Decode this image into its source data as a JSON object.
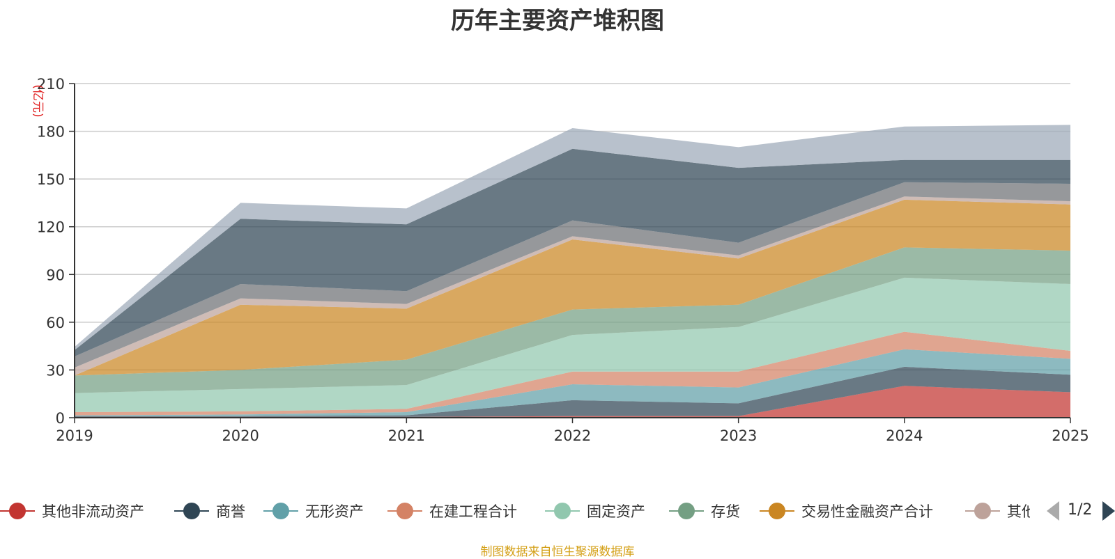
{
  "chart_data": {
    "type": "area",
    "stacked": true,
    "title": "历年主要资产堆积图",
    "ylabel": "(亿元)",
    "xlabel": "",
    "categories": [
      "2019",
      "2020",
      "2021",
      "2022",
      "2023",
      "2024",
      "2025"
    ],
    "ylim": [
      0,
      210
    ],
    "yticks": [
      0,
      30,
      60,
      90,
      120,
      150,
      180,
      210
    ],
    "grid": true,
    "series": [
      {
        "name": "其他非流动资产",
        "color": "#c23531",
        "values": [
          0.5,
          0.5,
          0.5,
          1,
          1,
          20,
          16
        ]
      },
      {
        "name": "商誉",
        "color": "#2f4554",
        "values": [
          0.5,
          0.5,
          1,
          10,
          8,
          12,
          11
        ]
      },
      {
        "name": "无形资产",
        "color": "#61a0a8",
        "values": [
          0.5,
          1,
          2,
          10,
          10,
          11,
          10
        ]
      },
      {
        "name": "在建工程合计",
        "color": "#d48265",
        "values": [
          2,
          2,
          2,
          8,
          10,
          11,
          5
        ]
      },
      {
        "name": "固定资产",
        "color": "#91c7ae",
        "values": [
          12,
          14,
          15,
          23,
          28,
          34,
          42
        ]
      },
      {
        "name": "存货",
        "color": "#749f83",
        "values": [
          11,
          12,
          16,
          16,
          14,
          19,
          21
        ]
      },
      {
        "name": "交易性金融资产合计",
        "color": "#ca8622",
        "values": [
          0,
          41,
          32,
          44,
          29,
          30,
          29
        ]
      },
      {
        "name": "其他",
        "color": "#bda29a",
        "values": [
          5,
          4,
          3,
          2,
          2,
          2,
          2
        ]
      },
      {
        "name": "",
        "color": "#6e7074",
        "values": [
          7,
          9,
          8,
          10,
          8,
          9,
          11
        ]
      },
      {
        "name": "",
        "color": "#2f4554",
        "values": [
          4,
          41,
          42,
          45,
          47,
          14,
          15
        ]
      },
      {
        "name": "",
        "color": "#9da9b8",
        "values": [
          2,
          10,
          10,
          13,
          13,
          21,
          22
        ]
      }
    ]
  },
  "legend": {
    "page_text": "1/2"
  },
  "source_note": "制图数据来自恒生聚源数据库"
}
